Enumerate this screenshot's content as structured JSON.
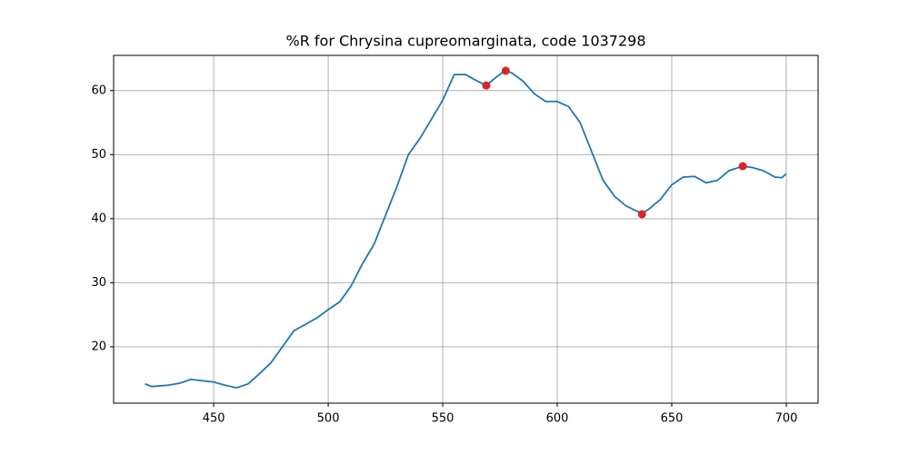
{
  "chart_data": {
    "type": "line",
    "title": "%R for Chrysina cupreomarginata, code 1037298",
    "x": [
      420,
      423,
      430,
      435,
      440,
      445,
      450,
      455,
      460,
      465,
      470,
      475,
      480,
      485,
      490,
      495,
      500,
      505,
      510,
      515,
      520,
      525,
      530,
      535,
      540,
      545,
      550,
      555,
      560,
      565,
      569,
      573,
      577,
      580,
      585,
      590,
      595,
      600,
      605,
      610,
      615,
      620,
      625,
      630,
      637,
      640,
      645,
      650,
      655,
      660,
      665,
      670,
      675,
      681,
      685,
      690,
      695,
      698,
      700
    ],
    "series": [
      {
        "color": "#1f77b4",
        "values": [
          14.2,
          13.8,
          14.0,
          14.3,
          14.9,
          14.7,
          14.5,
          14.0,
          13.6,
          14.2,
          15.8,
          17.5,
          20.0,
          22.5,
          23.5,
          24.5,
          25.8,
          27.0,
          29.5,
          33.0,
          36.0,
          40.5,
          45.0,
          50.0,
          52.5,
          55.5,
          58.5,
          62.5,
          62.5,
          61.5,
          60.8,
          62.0,
          63.1,
          62.8,
          61.5,
          59.5,
          58.3,
          58.3,
          57.5,
          55.0,
          50.5,
          46.0,
          43.5,
          42.0,
          40.8,
          41.5,
          43.0,
          45.3,
          46.5,
          46.6,
          45.6,
          46.0,
          47.5,
          48.2,
          48.0,
          47.5,
          46.5,
          46.4,
          47.0
        ]
      },
      {
        "type": "scatter",
        "color": "#d62728",
        "x": [
          569,
          577.5,
          637,
          681
        ],
        "values": [
          60.8,
          63.1,
          40.7,
          48.2
        ]
      }
    ],
    "xlim": [
      406.3,
      713.9
    ],
    "ylim": [
      11.2,
      65.5
    ],
    "xticks": [
      450,
      500,
      550,
      600,
      650,
      700
    ],
    "yticks": [
      20,
      30,
      40,
      50,
      60
    ],
    "grid": true
  }
}
